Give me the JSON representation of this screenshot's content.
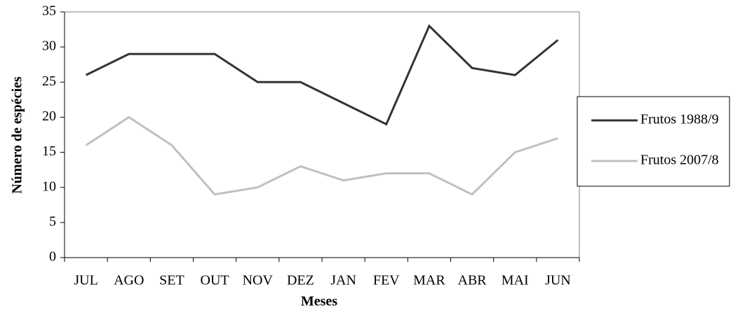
{
  "chart_data": {
    "type": "line",
    "x_label": "Meses",
    "y_label": "Número de espécies",
    "categories": [
      "JUL",
      "AGO",
      "SET",
      "OUT",
      "NOV",
      "DEZ",
      "JAN",
      "FEV",
      "MAR",
      "ABR",
      "MAI",
      "JUN"
    ],
    "series": [
      {
        "name": "Frutos 1988/9",
        "color": "#333333",
        "values": [
          26,
          29,
          29,
          29,
          25,
          25,
          22,
          19,
          33,
          27,
          26,
          31
        ]
      },
      {
        "name": "Frutos 2007/8",
        "color": "#c0c0c0",
        "values": [
          16,
          20,
          16,
          9,
          10,
          13,
          11,
          12,
          12,
          9,
          15,
          17
        ]
      }
    ],
    "ylim": [
      0,
      35
    ],
    "yticks": [
      0,
      5,
      10,
      15,
      20,
      25,
      30,
      35
    ],
    "grid": false,
    "legend": "right"
  }
}
